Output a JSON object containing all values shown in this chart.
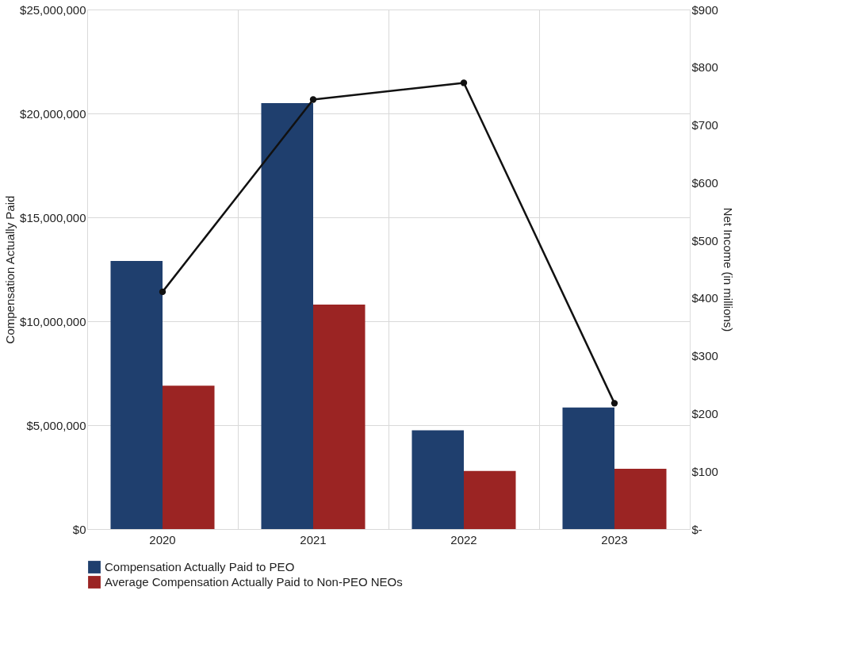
{
  "chart_data": {
    "type": "bar",
    "categories": [
      "2020",
      "2021",
      "2022",
      "2023"
    ],
    "ylabel": "Compensation Actually Paid",
    "y2label": "Net Income (in millions)",
    "series": [
      {
        "name": "Compensation Actually Paid to PEO",
        "color": "#1f3f6e",
        "values": [
          12900000,
          20500000,
          4750000,
          5850000
        ]
      },
      {
        "name": "Average Compensation Actually Paid to Non-PEO NEOs",
        "color": "#9b2423",
        "values": [
          6900000,
          10800000,
          2800000,
          2900000
        ]
      },
      {
        "type": "line",
        "axis": "y2",
        "color": "#111111",
        "marker": "circle",
        "values": [
          411,
          744,
          773,
          218
        ]
      }
    ],
    "ylim": [
      0,
      25000000
    ],
    "yticks": [
      {
        "value": 0,
        "label": "$0"
      },
      {
        "value": 5000000,
        "label": "$5,000,000"
      },
      {
        "value": 10000000,
        "label": "$10,000,000"
      },
      {
        "value": 15000000,
        "label": "$15,000,000"
      },
      {
        "value": 20000000,
        "label": "$20,000,000"
      },
      {
        "value": 25000000,
        "label": "$25,000,000"
      }
    ],
    "y2lim": [
      0,
      900
    ],
    "y2ticks": [
      {
        "value": 0,
        "label": "$-"
      },
      {
        "value": 100,
        "label": "$100"
      },
      {
        "value": 200,
        "label": "$200"
      },
      {
        "value": 300,
        "label": "$300"
      },
      {
        "value": 400,
        "label": "$400"
      },
      {
        "value": 500,
        "label": "$500"
      },
      {
        "value": 600,
        "label": "$600"
      },
      {
        "value": 700,
        "label": "$700"
      },
      {
        "value": 800,
        "label": "$800"
      },
      {
        "value": 900,
        "label": "$900"
      }
    ],
    "grid": true,
    "legend": "bottom"
  }
}
